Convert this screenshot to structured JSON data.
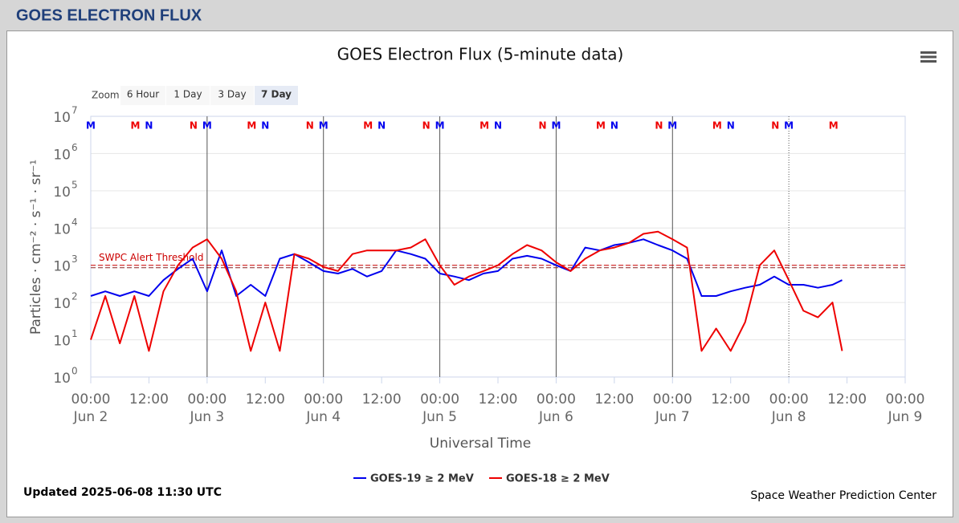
{
  "header": {
    "title": "GOES ELECTRON FLUX"
  },
  "chart_data": {
    "type": "line",
    "title": "GOES Electron Flux (5-minute data)",
    "zoom": {
      "label": "Zoom",
      "buttons": [
        "6 Hour",
        "1 Day",
        "3 Day",
        "7 Day"
      ],
      "selected": 3
    },
    "x_label": "Universal Time",
    "y_label": "Particles · cm⁻² · s⁻¹ · sr⁻¹",
    "log_y": true,
    "grid": true,
    "ylim": [
      1,
      10000000
    ],
    "yticks": [
      {
        "value": 1,
        "label": "10",
        "sup": "0"
      },
      {
        "value": 10,
        "label": "10",
        "sup": "1"
      },
      {
        "value": 100,
        "label": "10",
        "sup": "2"
      },
      {
        "value": 1000,
        "label": "10",
        "sup": "3"
      },
      {
        "value": 10000,
        "label": "10",
        "sup": "4"
      },
      {
        "value": 100000,
        "label": "10",
        "sup": "5"
      },
      {
        "value": 1000000,
        "label": "10",
        "sup": "6"
      },
      {
        "value": 10000000,
        "label": "10",
        "sup": "7"
      }
    ],
    "xlim": [
      0,
      168
    ],
    "xticks": [
      {
        "value": 0,
        "label": "00:00",
        "date": "Jun 2"
      },
      {
        "value": 12,
        "label": "12:00"
      },
      {
        "value": 24,
        "label": "00:00",
        "date": "Jun 3"
      },
      {
        "value": 36,
        "label": "12:00"
      },
      {
        "value": 48,
        "label": "00:00",
        "date": "Jun 4"
      },
      {
        "value": 60,
        "label": "12:00"
      },
      {
        "value": 72,
        "label": "00:00",
        "date": "Jun 5"
      },
      {
        "value": 84,
        "label": "12:00"
      },
      {
        "value": 96,
        "label": "00:00",
        "date": "Jun 6"
      },
      {
        "value": 108,
        "label": "12:00"
      },
      {
        "value": 120,
        "label": "00:00",
        "date": "Jun 7"
      },
      {
        "value": 132,
        "label": "12:00"
      },
      {
        "value": 144,
        "label": "00:00",
        "date": "Jun 8"
      },
      {
        "value": 156,
        "label": "12:00"
      },
      {
        "value": 168,
        "label": "00:00",
        "date": "Jun 9"
      }
    ],
    "day_lines": [
      24,
      48,
      72,
      96,
      120
    ],
    "dotted_lines": [
      144
    ],
    "threshold": {
      "value": 1000,
      "label": "SWPC Alert Threshold",
      "color": "#cc0000"
    },
    "markers": [
      {
        "label": "M",
        "color": "#0000ee",
        "x": [
          0,
          24,
          48,
          72,
          96,
          120,
          144
        ]
      },
      {
        "label": "N",
        "color": "#0000ee",
        "x": [
          12,
          36,
          60,
          84,
          108,
          132
        ]
      },
      {
        "label": "M",
        "color": "#ee0000",
        "x": [
          9.2,
          33.2,
          57.2,
          81.2,
          105.2,
          129.2,
          153.2
        ]
      },
      {
        "label": "N",
        "color": "#ee0000",
        "x": [
          21.2,
          45.2,
          69.2,
          93.2,
          117.2,
          141.2
        ]
      }
    ],
    "x": [
      0,
      3,
      6,
      9,
      12,
      15,
      18,
      21,
      24,
      27,
      30,
      33,
      36,
      39,
      42,
      45,
      48,
      51,
      54,
      57,
      60,
      63,
      66,
      69,
      72,
      75,
      78,
      81,
      84,
      87,
      90,
      93,
      96,
      99,
      102,
      105,
      108,
      111,
      114,
      117,
      120,
      123,
      126,
      129,
      132,
      135,
      138,
      141,
      144,
      147,
      150,
      153,
      155
    ],
    "series": [
      {
        "name": "GOES-19 ≥ 2 MeV",
        "color": "#0000ee",
        "values": [
          150,
          200,
          150,
          200,
          150,
          400,
          800,
          1500,
          200,
          2500,
          150,
          300,
          150,
          1500,
          2000,
          1200,
          700,
          600,
          800,
          500,
          700,
          2500,
          2000,
          1500,
          600,
          500,
          400,
          600,
          700,
          1500,
          1800,
          1500,
          1000,
          700,
          3000,
          2500,
          3500,
          4000,
          5000,
          3500,
          2500,
          1500,
          150,
          150,
          200,
          250,
          300,
          500,
          300,
          300,
          250,
          300,
          400
        ]
      },
      {
        "name": "GOES-18 ≥ 2 MeV",
        "color": "#ee0000",
        "values": [
          10,
          150,
          8,
          150,
          5,
          200,
          1000,
          3000,
          5000,
          1500,
          200,
          5,
          100,
          5,
          2000,
          1500,
          900,
          700,
          2000,
          2500,
          2500,
          2500,
          3000,
          5000,
          1000,
          300,
          500,
          700,
          1000,
          2000,
          3500,
          2500,
          1200,
          700,
          1500,
          2500,
          3000,
          4000,
          7000,
          8000,
          5000,
          3000,
          5,
          20,
          5,
          30,
          1000,
          2500,
          400,
          60,
          40,
          100,
          5
        ]
      }
    ],
    "updated": "Updated 2025-06-08 11:30 UTC",
    "credit": "Space Weather Prediction Center"
  }
}
